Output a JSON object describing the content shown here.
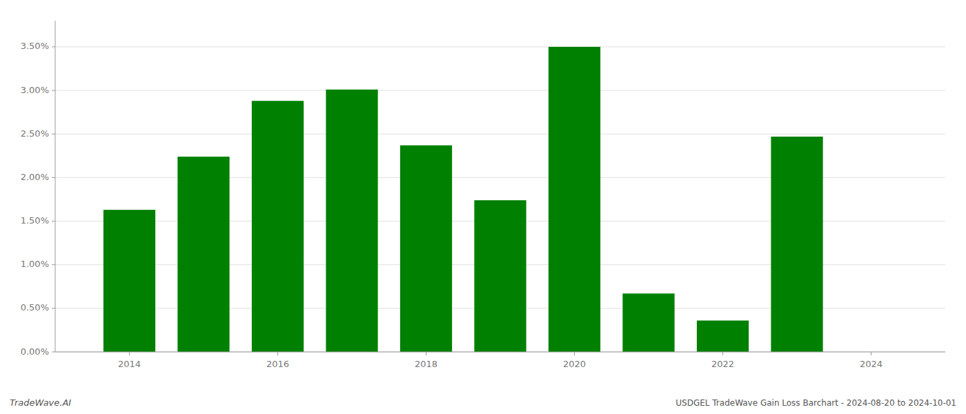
{
  "chart_data": {
    "type": "bar",
    "title": "USDGEL TradeWave Gain Loss Barchart - 2024-08-20 to 2024-10-01",
    "annotations": [
      "TradeWave.AI"
    ],
    "x": [
      2014,
      2015,
      2016,
      2017,
      2018,
      2019,
      2020,
      2021,
      2022,
      2023,
      2024
    ],
    "values": [
      0.0163,
      0.0224,
      0.0288,
      0.0301,
      0.0237,
      0.0174,
      0.035,
      0.0067,
      0.0036,
      0.0247,
      0.0
    ],
    "color": "#008000",
    "xlim": [
      2013.0,
      2025.0
    ],
    "xticks": [
      2014,
      2016,
      2018,
      2020,
      2022,
      2024
    ],
    "ylim": [
      0,
      0.038
    ],
    "yticks": [
      {
        "value": 0.0,
        "label": "0.00%"
      },
      {
        "value": 0.005,
        "label": "0.50%"
      },
      {
        "value": 0.01,
        "label": "1.00%"
      },
      {
        "value": 0.015,
        "label": "1.50%"
      },
      {
        "value": 0.02,
        "label": "2.00%"
      },
      {
        "value": 0.025,
        "label": "2.50%"
      },
      {
        "value": 0.03,
        "label": "3.00%"
      },
      {
        "value": 0.035,
        "label": "3.50%"
      }
    ],
    "grid": true
  }
}
